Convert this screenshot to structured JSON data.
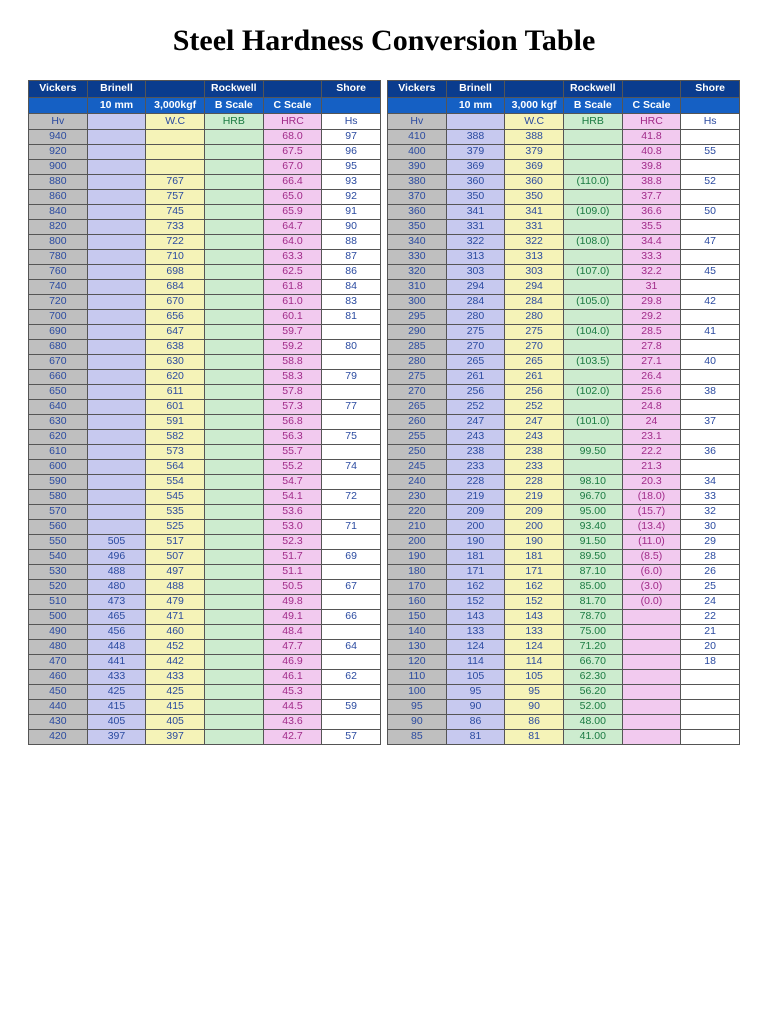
{
  "title": "Steel Hardness Conversion Table",
  "colors": {
    "header1_bg": "#0a3c8e",
    "header2_bg": "#1560c4",
    "header_text": "#ffffff",
    "col_bg": [
      "#bfbfbf",
      "#c7c9ef",
      "#f5f3b8",
      "#cdeccf",
      "#f2caef",
      "#ffffff"
    ],
    "col_text": [
      "#2a4aa0",
      "#2a4aa0",
      "#2a4aa0",
      "#1a7a42",
      "#a02a88",
      "#2a4aa0"
    ],
    "border": "#555555"
  },
  "typography": {
    "title_family": "Times New Roman",
    "title_size_pt": 22,
    "body_family": "Arial",
    "cell_size_pt": 8
  },
  "header1": [
    "Vickers",
    "Brinell",
    "",
    "Rockwell",
    "",
    "Shore"
  ],
  "header2": [
    "",
    "10 mm",
    "3,000kgf",
    "B Scale",
    "C Scale",
    ""
  ],
  "header2_right": [
    "",
    "10 mm",
    "3,000 kgf",
    "B Scale",
    "C Scale",
    ""
  ],
  "header3": [
    "Hv",
    "",
    "W.C",
    "HRB",
    "HRC",
    "Hs"
  ],
  "left_rows": [
    [
      "940",
      "",
      "",
      "",
      "68.0",
      "97"
    ],
    [
      "920",
      "",
      "",
      "",
      "67.5",
      "96"
    ],
    [
      "900",
      "",
      "",
      "",
      "67.0",
      "95"
    ],
    [
      "880",
      "",
      "767",
      "",
      "66.4",
      "93"
    ],
    [
      "860",
      "",
      "757",
      "",
      "65.0",
      "92"
    ],
    [
      "840",
      "",
      "745",
      "",
      "65.9",
      "91"
    ],
    [
      "820",
      "",
      "733",
      "",
      "64.7",
      "90"
    ],
    [
      "800",
      "",
      "722",
      "",
      "64.0",
      "88"
    ],
    [
      "780",
      "",
      "710",
      "",
      "63.3",
      "87"
    ],
    [
      "760",
      "",
      "698",
      "",
      "62.5",
      "86"
    ],
    [
      "740",
      "",
      "684",
      "",
      "61.8",
      "84"
    ],
    [
      "720",
      "",
      "670",
      "",
      "61.0",
      "83"
    ],
    [
      "700",
      "",
      "656",
      "",
      "60.1",
      "81"
    ],
    [
      "690",
      "",
      "647",
      "",
      "59.7",
      ""
    ],
    [
      "680",
      "",
      "638",
      "",
      "59.2",
      "80"
    ],
    [
      "670",
      "",
      "630",
      "",
      "58.8",
      ""
    ],
    [
      "660",
      "",
      "620",
      "",
      "58.3",
      "79"
    ],
    [
      "650",
      "",
      "611",
      "",
      "57.8",
      ""
    ],
    [
      "640",
      "",
      "601",
      "",
      "57.3",
      "77"
    ],
    [
      "630",
      "",
      "591",
      "",
      "56.8",
      ""
    ],
    [
      "620",
      "",
      "582",
      "",
      "56.3",
      "75"
    ],
    [
      "610",
      "",
      "573",
      "",
      "55.7",
      ""
    ],
    [
      "600",
      "",
      "564",
      "",
      "55.2",
      "74"
    ],
    [
      "590",
      "",
      "554",
      "",
      "54.7",
      ""
    ],
    [
      "580",
      "",
      "545",
      "",
      "54.1",
      "72"
    ],
    [
      "570",
      "",
      "535",
      "",
      "53.6",
      ""
    ],
    [
      "560",
      "",
      "525",
      "",
      "53.0",
      "71"
    ],
    [
      "550",
      "505",
      "517",
      "",
      "52.3",
      ""
    ],
    [
      "540",
      "496",
      "507",
      "",
      "51.7",
      "69"
    ],
    [
      "530",
      "488",
      "497",
      "",
      "51.1",
      ""
    ],
    [
      "520",
      "480",
      "488",
      "",
      "50.5",
      "67"
    ],
    [
      "510",
      "473",
      "479",
      "",
      "49.8",
      ""
    ],
    [
      "500",
      "465",
      "471",
      "",
      "49.1",
      "66"
    ],
    [
      "490",
      "456",
      "460",
      "",
      "48.4",
      ""
    ],
    [
      "480",
      "448",
      "452",
      "",
      "47.7",
      "64"
    ],
    [
      "470",
      "441",
      "442",
      "",
      "46.9",
      ""
    ],
    [
      "460",
      "433",
      "433",
      "",
      "46.1",
      "62"
    ],
    [
      "450",
      "425",
      "425",
      "",
      "45.3",
      ""
    ],
    [
      "440",
      "415",
      "415",
      "",
      "44.5",
      "59"
    ],
    [
      "430",
      "405",
      "405",
      "",
      "43.6",
      ""
    ],
    [
      "420",
      "397",
      "397",
      "",
      "42.7",
      "57"
    ]
  ],
  "right_rows": [
    [
      "410",
      "388",
      "388",
      "",
      "41.8",
      ""
    ],
    [
      "400",
      "379",
      "379",
      "",
      "40.8",
      "55"
    ],
    [
      "390",
      "369",
      "369",
      "",
      "39.8",
      ""
    ],
    [
      "380",
      "360",
      "360",
      "(110.0)",
      "38.8",
      "52"
    ],
    [
      "370",
      "350",
      "350",
      "",
      "37.7",
      ""
    ],
    [
      "360",
      "341",
      "341",
      "(109.0)",
      "36.6",
      "50"
    ],
    [
      "350",
      "331",
      "331",
      "",
      "35.5",
      ""
    ],
    [
      "340",
      "322",
      "322",
      "(108.0)",
      "34.4",
      "47"
    ],
    [
      "330",
      "313",
      "313",
      "",
      "33.3",
      ""
    ],
    [
      "320",
      "303",
      "303",
      "(107.0)",
      "32.2",
      "45"
    ],
    [
      "310",
      "294",
      "294",
      "",
      "31",
      ""
    ],
    [
      "300",
      "284",
      "284",
      "(105.0)",
      "29.8",
      "42"
    ],
    [
      "295",
      "280",
      "280",
      "",
      "29.2",
      ""
    ],
    [
      "290",
      "275",
      "275",
      "(104.0)",
      "28.5",
      "41"
    ],
    [
      "285",
      "270",
      "270",
      "",
      "27.8",
      ""
    ],
    [
      "280",
      "265",
      "265",
      "(103.5)",
      "27.1",
      "40"
    ],
    [
      "275",
      "261",
      "261",
      "",
      "26.4",
      ""
    ],
    [
      "270",
      "256",
      "256",
      "(102.0)",
      "25.6",
      "38"
    ],
    [
      "265",
      "252",
      "252",
      "",
      "24.8",
      ""
    ],
    [
      "260",
      "247",
      "247",
      "(101.0)",
      "24",
      "37"
    ],
    [
      "255",
      "243",
      "243",
      "",
      "23.1",
      ""
    ],
    [
      "250",
      "238",
      "238",
      "99.50",
      "22.2",
      "36"
    ],
    [
      "245",
      "233",
      "233",
      "",
      "21.3",
      ""
    ],
    [
      "240",
      "228",
      "228",
      "98.10",
      "20.3",
      "34"
    ],
    [
      "230",
      "219",
      "219",
      "96.70",
      "(18.0)",
      "33"
    ],
    [
      "220",
      "209",
      "209",
      "95.00",
      "(15.7)",
      "32"
    ],
    [
      "210",
      "200",
      "200",
      "93.40",
      "(13.4)",
      "30"
    ],
    [
      "200",
      "190",
      "190",
      "91.50",
      "(11.0)",
      "29"
    ],
    [
      "190",
      "181",
      "181",
      "89.50",
      "(8.5)",
      "28"
    ],
    [
      "180",
      "171",
      "171",
      "87.10",
      "(6.0)",
      "26"
    ],
    [
      "170",
      "162",
      "162",
      "85.00",
      "(3.0)",
      "25"
    ],
    [
      "160",
      "152",
      "152",
      "81.70",
      "(0.0)",
      "24"
    ],
    [
      "150",
      "143",
      "143",
      "78.70",
      "",
      "22"
    ],
    [
      "140",
      "133",
      "133",
      "75.00",
      "",
      "21"
    ],
    [
      "130",
      "124",
      "124",
      "71.20",
      "",
      "20"
    ],
    [
      "120",
      "114",
      "114",
      "66.70",
      "",
      "18"
    ],
    [
      "110",
      "105",
      "105",
      "62.30",
      "",
      ""
    ],
    [
      "100",
      "95",
      "95",
      "56.20",
      "",
      ""
    ],
    [
      "95",
      "90",
      "90",
      "52.00",
      "",
      ""
    ],
    [
      "90",
      "86",
      "86",
      "48.00",
      "",
      ""
    ],
    [
      "85",
      "81",
      "81",
      "41.00",
      "",
      ""
    ]
  ]
}
